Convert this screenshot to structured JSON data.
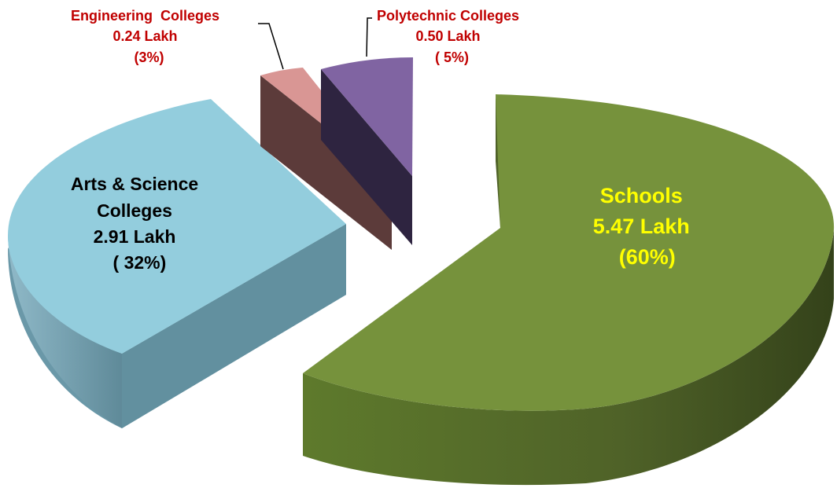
{
  "chart_data": {
    "type": "pie",
    "style": "3d-exploded",
    "slices": [
      {
        "name": "Schools",
        "value": 5.47,
        "unit": "Lakh",
        "percent": 60,
        "color": "#76923C",
        "side_color": "#4F6228",
        "label_color": "#FFFF00",
        "label_lines": [
          "Schools",
          "5.47 Lakh",
          "(60%)"
        ]
      },
      {
        "name": "Arts & Science Colleges",
        "value": 2.91,
        "unit": "Lakh",
        "percent": 32,
        "color": "#93CDDD",
        "side_color": "#6A98A8",
        "label_color": "#000000",
        "label_lines": [
          "Arts & Science",
          "Colleges",
          "2.91 Lakh",
          "( 32%)"
        ]
      },
      {
        "name": "Engineering Colleges",
        "value": 0.24,
        "unit": "Lakh",
        "percent": 3,
        "color": "#D99694",
        "side_color": "#5C3B3A",
        "label_color": "#C00000",
        "label_lines": [
          "Engineering  Colleges",
          "0.24 Lakh",
          "(3%)"
        ]
      },
      {
        "name": "Polytechnic Colleges",
        "value": 0.5,
        "unit": "Lakh",
        "percent": 5,
        "color": "#8064A2",
        "side_color": "#2E2440",
        "label_color": "#C00000",
        "label_lines": [
          "Polytechnic Colleges",
          "0.50 Lakh",
          "( 5%)"
        ]
      }
    ]
  }
}
